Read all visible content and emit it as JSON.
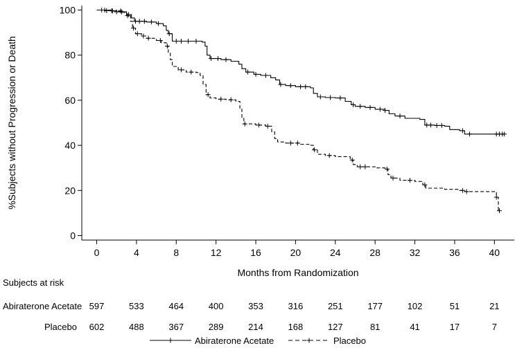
{
  "chart_data": {
    "type": "line",
    "title": "",
    "xlabel": "Months from Randomization",
    "ylabel": "%Subjects without Progression or Death",
    "xlim": [
      -1.5,
      42
    ],
    "ylim": [
      -2,
      102
    ],
    "x_ticks": [
      0,
      4,
      8,
      12,
      16,
      20,
      24,
      28,
      32,
      36,
      40
    ],
    "y_ticks": [
      0,
      20,
      40,
      60,
      80,
      100
    ],
    "grid": false,
    "legend_position": "bottom-center",
    "series": [
      {
        "name": "Abiraterone Acetate",
        "line_style": "solid",
        "points": [
          [
            0,
            100
          ],
          [
            1.0,
            99.7
          ],
          [
            2.0,
            99.2
          ],
          [
            3.0,
            98.0
          ],
          [
            3.5,
            96.5
          ],
          [
            3.8,
            95.0
          ],
          [
            5.0,
            94.7
          ],
          [
            6.0,
            94.0
          ],
          [
            6.7,
            93.0
          ],
          [
            7.0,
            91.0
          ],
          [
            7.2,
            89.5
          ],
          [
            7.6,
            86.2
          ],
          [
            10.6,
            85.8
          ],
          [
            10.9,
            84.0
          ],
          [
            11.1,
            80.0
          ],
          [
            11.4,
            78.5
          ],
          [
            12.5,
            78.0
          ],
          [
            13.5,
            77.3
          ],
          [
            14.3,
            76.0
          ],
          [
            14.6,
            74.0
          ],
          [
            15.0,
            72.5
          ],
          [
            15.8,
            71.5
          ],
          [
            16.5,
            71.0
          ],
          [
            17.5,
            70.0
          ],
          [
            18.0,
            69.0
          ],
          [
            18.4,
            67.0
          ],
          [
            19.0,
            66.5
          ],
          [
            20.0,
            66.0
          ],
          [
            21.5,
            65.5
          ],
          [
            21.8,
            63.0
          ],
          [
            22.2,
            61.5
          ],
          [
            23.0,
            61.2
          ],
          [
            24.0,
            61.0
          ],
          [
            25.0,
            59.5
          ],
          [
            25.6,
            58.0
          ],
          [
            26.0,
            57.3
          ],
          [
            27.0,
            56.8
          ],
          [
            28.0,
            56.0
          ],
          [
            29.0,
            55.5
          ],
          [
            29.4,
            54.0
          ],
          [
            30.0,
            53.0
          ],
          [
            31.0,
            52.0
          ],
          [
            32.5,
            51.5
          ],
          [
            33.0,
            49.0
          ],
          [
            34.0,
            48.8
          ],
          [
            35.0,
            48.5
          ],
          [
            35.5,
            47.0
          ],
          [
            36.5,
            46.5
          ],
          [
            37.0,
            45.0
          ],
          [
            41.0,
            45.0
          ]
        ],
        "censor_x": [
          0.5,
          1.0,
          1.5,
          2.0,
          2.5,
          3.2,
          3.9,
          4.3,
          4.8,
          5.5,
          6.2,
          7.3,
          8.0,
          8.5,
          9.2,
          10.0,
          11.5,
          12.2,
          13.0,
          15.2,
          16.0,
          17.0,
          18.5,
          19.5,
          20.5,
          21.0,
          22.5,
          23.5,
          24.5,
          25.8,
          26.5,
          27.5,
          28.5,
          29.0,
          30.5,
          33.2,
          33.6,
          34.2,
          34.7,
          36.8,
          37.5,
          40.2,
          40.5,
          40.8,
          41.0
        ]
      },
      {
        "name": "Placebo",
        "line_style": "dashed",
        "points": [
          [
            0,
            100
          ],
          [
            1.5,
            99.6
          ],
          [
            2.5,
            99.0
          ],
          [
            3.0,
            97.5
          ],
          [
            3.4,
            95.0
          ],
          [
            3.6,
            92.0
          ],
          [
            3.9,
            89.5
          ],
          [
            4.5,
            88.5
          ],
          [
            5.0,
            87.5
          ],
          [
            6.0,
            86.5
          ],
          [
            6.5,
            85.5
          ],
          [
            7.0,
            84.0
          ],
          [
            7.2,
            81.0
          ],
          [
            7.4,
            78.0
          ],
          [
            7.6,
            75.0
          ],
          [
            8.2,
            73.5
          ],
          [
            9.0,
            72.5
          ],
          [
            10.0,
            72.3
          ],
          [
            10.4,
            71.0
          ],
          [
            10.7,
            67.0
          ],
          [
            11.0,
            62.5
          ],
          [
            11.4,
            61.0
          ],
          [
            12.0,
            60.5
          ],
          [
            13.0,
            60.2
          ],
          [
            14.0,
            59.5
          ],
          [
            14.4,
            56.0
          ],
          [
            14.6,
            52.0
          ],
          [
            14.8,
            49.5
          ],
          [
            16.0,
            49.0
          ],
          [
            17.0,
            48.5
          ],
          [
            17.6,
            46.0
          ],
          [
            17.9,
            43.0
          ],
          [
            18.2,
            41.5
          ],
          [
            19.0,
            41.0
          ],
          [
            20.5,
            40.5
          ],
          [
            21.5,
            40.0
          ],
          [
            21.8,
            38.0
          ],
          [
            22.2,
            36.0
          ],
          [
            23.0,
            35.5
          ],
          [
            24.0,
            35.0
          ],
          [
            25.5,
            33.5
          ],
          [
            25.8,
            31.5
          ],
          [
            26.2,
            30.5
          ],
          [
            28.0,
            30.0
          ],
          [
            29.0,
            29.5
          ],
          [
            29.3,
            27.0
          ],
          [
            29.6,
            25.5
          ],
          [
            30.5,
            24.5
          ],
          [
            32.0,
            24.0
          ],
          [
            32.8,
            22.5
          ],
          [
            33.1,
            21.0
          ],
          [
            35.0,
            20.5
          ],
          [
            36.5,
            20.0
          ],
          [
            37.0,
            19.5
          ],
          [
            40.0,
            19.5
          ],
          [
            40.2,
            17.0
          ],
          [
            40.4,
            11.0
          ]
        ],
        "censor_x": [
          0.8,
          1.6,
          2.4,
          3.1,
          3.7,
          4.1,
          4.7,
          5.2,
          6.4,
          7.1,
          8.5,
          9.5,
          11.2,
          12.5,
          13.5,
          14.9,
          16.3,
          17.2,
          19.5,
          20.2,
          21.9,
          23.4,
          25.7,
          26.5,
          27.0,
          29.2,
          29.8,
          31.5,
          33.0,
          36.8,
          37.2,
          40.2,
          40.5
        ]
      }
    ],
    "risk_table": {
      "title": "Subjects at risk",
      "rows": [
        {
          "label": "Abiraterone Acetate",
          "values": [
            597,
            533,
            464,
            400,
            353,
            316,
            251,
            177,
            102,
            51,
            21
          ]
        },
        {
          "label": "Placebo",
          "values": [
            602,
            488,
            367,
            289,
            214,
            168,
            127,
            81,
            41,
            17,
            7
          ]
        }
      ]
    }
  }
}
